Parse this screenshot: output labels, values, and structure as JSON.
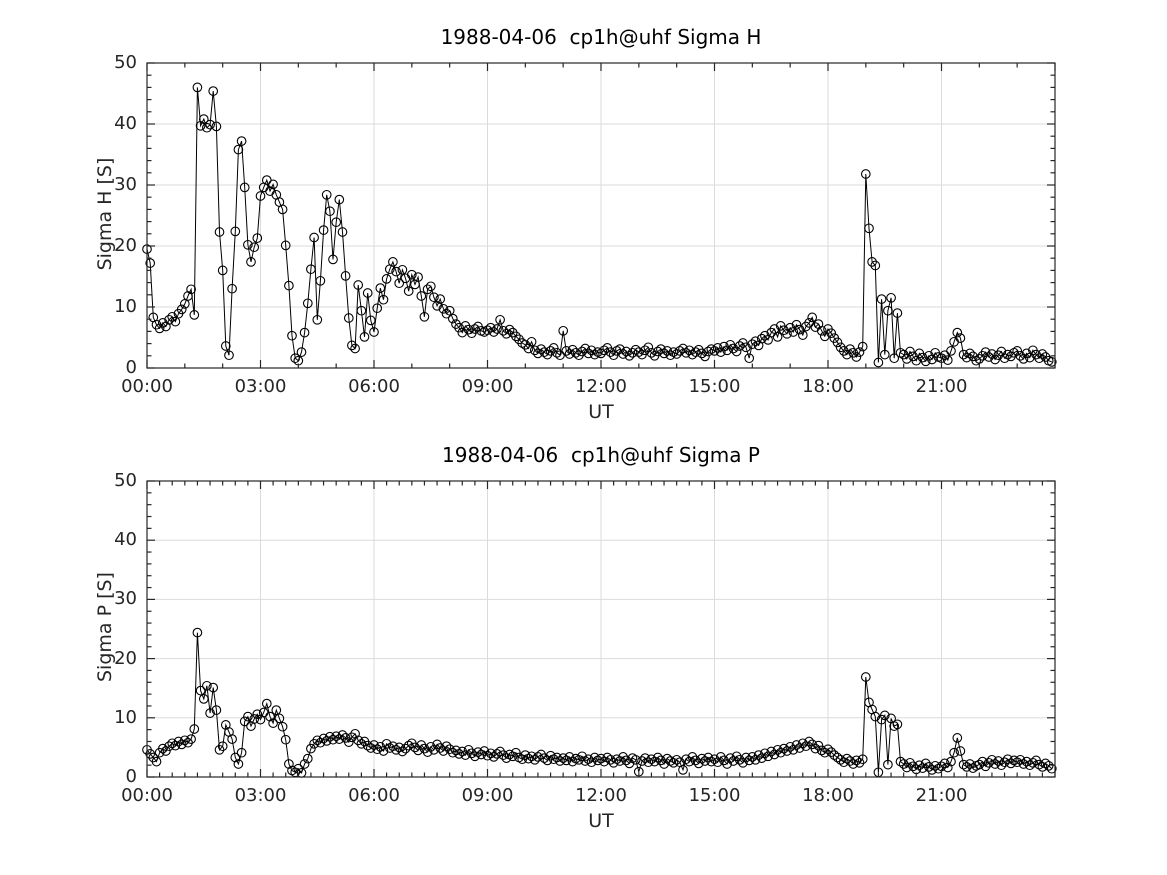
{
  "figure": {
    "background": "#ffffff",
    "axis_color": "#262626",
    "text_color": "#262626"
  },
  "chart_data": [
    {
      "type": "line",
      "title": "1988-04-06  cp1h@uhf Sigma H",
      "xlabel": "UT",
      "ylabel": "Sigma H [S]",
      "marker": "open-circle",
      "line_color": "#000000",
      "grid": true,
      "grid_color": "#dbdbdb",
      "xlim_hours": [
        0,
        24
      ],
      "ylim": [
        0,
        50
      ],
      "yticks": [
        0,
        10,
        20,
        30,
        40,
        50
      ],
      "xtick_hours": [
        0,
        3,
        6,
        9,
        12,
        15,
        18,
        21
      ],
      "xtick_labels": [
        "00:00",
        "03:00",
        "06:00",
        "09:00",
        "12:00",
        "15:00",
        "18:00",
        "21:00"
      ],
      "x_start_hour": 0,
      "x_step_minutes": 5,
      "values": [
        19.5,
        17.2,
        8.3,
        7.1,
        6.5,
        7.4,
        6.8,
        7.9,
        8.4,
        7.6,
        8.9,
        9.6,
        10.5,
        11.8,
        12.9,
        8.7,
        46.0,
        39.7,
        40.8,
        39.4,
        39.9,
        45.4,
        39.6,
        22.3,
        16.0,
        3.6,
        2.1,
        13.0,
        22.4,
        35.8,
        37.2,
        29.6,
        20.2,
        17.4,
        19.8,
        21.3,
        28.2,
        29.6,
        30.8,
        29.0,
        30.1,
        28.4,
        27.2,
        26.0,
        20.1,
        13.5,
        5.3,
        1.6,
        1.2,
        2.6,
        5.8,
        10.6,
        16.2,
        21.4,
        7.9,
        14.3,
        22.6,
        28.4,
        25.7,
        17.8,
        23.9,
        27.6,
        22.3,
        15.1,
        8.2,
        3.7,
        3.2,
        13.6,
        9.4,
        5.1,
        12.3,
        7.8,
        5.9,
        9.8,
        13.1,
        11.2,
        14.6,
        16.2,
        17.4,
        15.8,
        13.9,
        16.1,
        14.7,
        12.6,
        15.3,
        13.7,
        14.9,
        11.8,
        8.4,
        12.9,
        13.4,
        11.6,
        10.2,
        11.3,
        9.7,
        8.9,
        9.4,
        8.1,
        7.2,
        6.6,
        5.8,
        6.9,
        6.3,
        5.7,
        6.4,
        6.8,
        6.1,
        5.9,
        6.2,
        6.6,
        5.9,
        6.4,
        7.9,
        6.1,
        5.6,
        6.3,
        5.8,
        5.2,
        4.7,
        4.1,
        3.8,
        3.2,
        4.3,
        2.9,
        2.4,
        3.1,
        2.6,
        2.2,
        2.8,
        3.3,
        2.5,
        2.1,
        6.1,
        2.8,
        2.3,
        3.0,
        2.5,
        2.1,
        2.7,
        3.2,
        2.4,
        2.9,
        2.2,
        2.6,
        2.4,
        2.9,
        3.3,
        2.6,
        2.1,
        2.8,
        3.1,
        2.3,
        2.7,
        2.0,
        2.5,
        3.0,
        2.6,
        2.2,
        2.9,
        3.4,
        2.5,
        2.0,
        2.7,
        3.1,
        2.4,
        2.8,
        2.1,
        2.6,
        2.3,
        2.8,
        3.2,
        2.5,
        2.9,
        2.2,
        2.6,
        3.0,
        2.4,
        1.9,
        2.7,
        3.1,
        2.8,
        3.3,
        2.6,
        3.5,
        2.9,
        3.8,
        3.2,
        2.7,
        3.6,
        4.1,
        3.4,
        1.6,
        3.9,
        4.4,
        3.7,
        4.8,
        5.3,
        4.6,
        5.8,
        6.4,
        5.1,
        6.9,
        6.2,
        5.6,
        6.6,
        5.9,
        7.1,
        6.3,
        5.4,
        6.8,
        7.4,
        8.3,
        6.7,
        7.2,
        6.1,
        5.2,
        6.4,
        5.7,
        4.9,
        4.2,
        3.4,
        2.8,
        2.2,
        3.1,
        2.5,
        1.8,
        2.6,
        3.5,
        31.8,
        22.9,
        17.4,
        16.8,
        0.9,
        11.3,
        2.2,
        9.4,
        11.5,
        1.6,
        9.0,
        2.5,
        2.2,
        1.5,
        2.7,
        1.9,
        1.2,
        2.4,
        1.7,
        1.1,
        2.0,
        1.4,
        2.5,
        1.8,
        1.6,
        2.1,
        1.3,
        2.8,
        4.3,
        5.8,
        4.9,
        2.2,
        1.7,
        2.4,
        1.9,
        1.2,
        1.5,
        2.0,
        2.6,
        1.8,
        2.3,
        1.4,
        2.1,
        2.7,
        1.6,
        2.2,
        1.9,
        2.5,
        2.8,
        2.0,
        1.5,
        2.4,
        1.7,
        2.9,
        2.2,
        1.6,
        2.3,
        1.8,
        1.2,
        1.0
      ]
    },
    {
      "type": "line",
      "title": "1988-04-06  cp1h@uhf Sigma P",
      "xlabel": "UT",
      "ylabel": "Sigma P [S]",
      "marker": "open-circle",
      "line_color": "#000000",
      "grid": true,
      "grid_color": "#dbdbdb",
      "xlim_hours": [
        0,
        24
      ],
      "ylim": [
        0,
        50
      ],
      "yticks": [
        0,
        10,
        20,
        30,
        40,
        50
      ],
      "xtick_hours": [
        0,
        3,
        6,
        9,
        12,
        15,
        18,
        21
      ],
      "xtick_labels": [
        "00:00",
        "03:00",
        "06:00",
        "09:00",
        "12:00",
        "15:00",
        "18:00",
        "21:00"
      ],
      "x_start_hour": 0,
      "x_step_minutes": 5,
      "values": [
        4.6,
        3.9,
        3.3,
        2.6,
        4.1,
        4.8,
        4.4,
        5.2,
        5.7,
        5.3,
        6.0,
        5.5,
        6.2,
        5.8,
        6.4,
        8.1,
        24.4,
        14.6,
        13.2,
        15.4,
        10.8,
        15.1,
        11.3,
        4.6,
        5.2,
        8.8,
        7.6,
        6.4,
        3.3,
        2.2,
        4.1,
        9.4,
        10.2,
        8.6,
        9.8,
        10.6,
        9.7,
        10.9,
        12.4,
        10.2,
        9.1,
        11.3,
        9.9,
        8.5,
        6.3,
        2.2,
        1.1,
        0.8,
        1.4,
        0.7,
        2.2,
        3.1,
        4.8,
        5.6,
        6.2,
        5.8,
        6.5,
        6.1,
        6.8,
        6.3,
        6.9,
        6.4,
        7.1,
        6.6,
        5.9,
        6.7,
        7.3,
        6.2,
        5.6,
        6.0,
        5.3,
        4.9,
        5.4,
        4.7,
        5.1,
        4.4,
        5.6,
        4.9,
        5.2,
        4.6,
        5.0,
        4.3,
        4.8,
        5.3,
        5.7,
        5.0,
        4.5,
        5.4,
        4.8,
        4.2,
        5.1,
        4.6,
        5.5,
        4.9,
        4.4,
        5.2,
        4.7,
        4.1,
        4.5,
        3.9,
        4.3,
        3.7,
        4.6,
        4.0,
        3.5,
        4.2,
        3.8,
        4.4,
        3.6,
        4.0,
        3.4,
        3.9,
        4.3,
        3.7,
        3.2,
        3.8,
        3.5,
        4.1,
        3.3,
        3.0,
        3.7,
        3.1,
        3.5,
        2.9,
        3.4,
        3.8,
        3.2,
        2.8,
        3.6,
        3.0,
        3.3,
        2.7,
        3.2,
        2.8,
        3.4,
        2.6,
        3.1,
        2.9,
        3.5,
        2.7,
        3.0,
        2.5,
        3.3,
        2.8,
        3.1,
        2.6,
        3.3,
        2.9,
        2.4,
        3.0,
        2.7,
        3.4,
        2.8,
        2.3,
        3.2,
        2.9,
        0.9,
        2.7,
        3.2,
        2.5,
        3.0,
        2.6,
        3.3,
        2.8,
        2.2,
        3.1,
        2.7,
        2.4,
        2.9,
        2.5,
        1.2,
        3.0,
        2.6,
        3.4,
        2.8,
        2.3,
        3.1,
        2.7,
        3.3,
        2.6,
        3.0,
        2.5,
        3.4,
        2.8,
        2.2,
        3.2,
        2.7,
        3.5,
        2.9,
        2.4,
        3.3,
        2.8,
        3.4,
        2.9,
        3.7,
        3.2,
        4.0,
        3.5,
        4.3,
        3.8,
        4.6,
        4.1,
        4.8,
        4.4,
        5.1,
        4.6,
        5.4,
        4.9,
        5.7,
        5.2,
        6.0,
        5.5,
        4.8,
        5.3,
        4.5,
        4.1,
        4.7,
        4.2,
        3.7,
        3.3,
        2.9,
        2.5,
        3.1,
        2.7,
        2.2,
        2.8,
        2.4,
        3.0,
        16.9,
        12.6,
        11.4,
        10.2,
        0.8,
        9.7,
        10.4,
        2.1,
        9.9,
        8.6,
        8.9,
        2.6,
        2.2,
        1.6,
        2.4,
        1.8,
        1.3,
        2.0,
        1.5,
        2.3,
        1.7,
        1.2,
        1.9,
        1.4,
        1.8,
        2.3,
        1.6,
        2.6,
        4.1,
        6.6,
        4.4,
        2.1,
        1.7,
        2.2,
        1.5,
        1.9,
        2.1,
        2.6,
        1.8,
        2.4,
        2.9,
        2.2,
        2.7,
        2.0,
        2.5,
        3.0,
        2.3,
        2.8,
        2.5,
        2.9,
        2.2,
        2.6,
        2.0,
        2.4,
        2.8,
        2.1,
        1.7,
        2.3,
        1.9,
        1.4
      ]
    }
  ]
}
